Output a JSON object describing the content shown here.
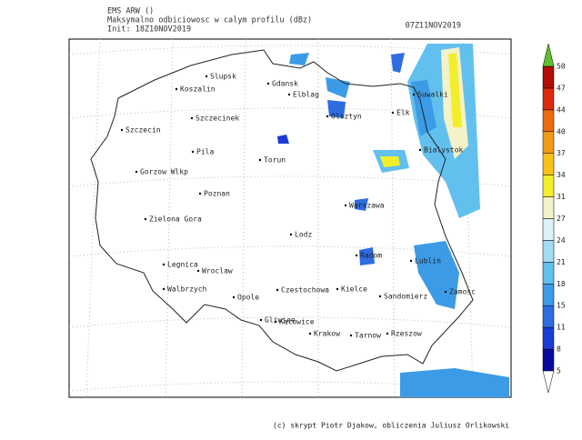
{
  "header": {
    "model": "EMS ARW ()",
    "field": "Maksymalno odbiciowosc w calym profilu (dBz)",
    "init": "Init: 18Z10NOV2019",
    "valid": "07Z11NOV2019"
  },
  "cities": [
    {
      "label": "Slupsk"
    },
    {
      "label": "Gdansk"
    },
    {
      "label": "Koszalin"
    },
    {
      "label": "Elblag"
    },
    {
      "label": "Suwalki"
    },
    {
      "label": "Olsztyn"
    },
    {
      "label": "Elk"
    },
    {
      "label": "Szczecinek"
    },
    {
      "label": "Szczecin"
    },
    {
      "label": "Bialystok"
    },
    {
      "label": "Pila"
    },
    {
      "label": "Torun"
    },
    {
      "label": "Gorzow Wlkp"
    },
    {
      "label": "Poznan"
    },
    {
      "label": "Warszawa"
    },
    {
      "label": "Zielona Gora"
    },
    {
      "label": "Lodz"
    },
    {
      "label": "Radom"
    },
    {
      "label": "Lublin"
    },
    {
      "label": "Legnica"
    },
    {
      "label": "Wroclaw"
    },
    {
      "label": "Walbrzych"
    },
    {
      "label": "Czestochowa"
    },
    {
      "label": "Kielce"
    },
    {
      "label": "Sandomierz"
    },
    {
      "label": "Zamosc"
    },
    {
      "label": "Opole"
    },
    {
      "label": "Gliwice"
    },
    {
      "label": "Katowice"
    },
    {
      "label": "Krakow"
    },
    {
      "label": "Tarnow"
    },
    {
      "label": "Rzeszow"
    }
  ],
  "colorbar": {
    "labels": [
      5,
      8,
      11,
      15,
      18,
      21,
      24,
      27,
      31,
      34,
      37,
      40,
      44,
      47,
      50
    ]
  },
  "footer": "(c) skrypt Piotr Djakow, obliczenia Juliusz Orlikowski"
}
